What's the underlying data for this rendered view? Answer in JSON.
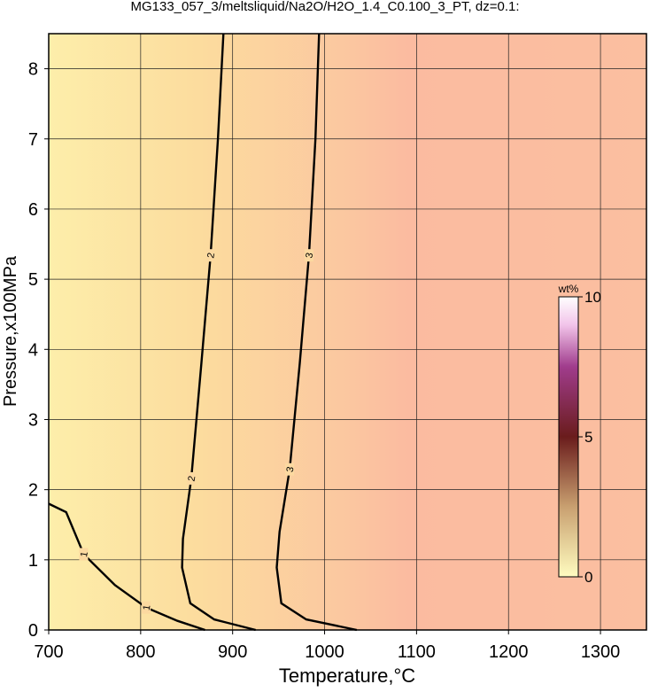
{
  "chart_data": {
    "type": "contour",
    "title": "MG133_057_3/meltsliquid/Na2O/H2O_1.4_C0.100_3_PT, dz=0.1:",
    "x_label": "Temperature,°C",
    "y_label": "Pressure,x100MPa",
    "xlim": [
      700,
      1350
    ],
    "ylim": [
      0,
      8.5
    ],
    "xticks": [
      700,
      800,
      900,
      1000,
      1100,
      1200,
      1300
    ],
    "yticks": [
      0,
      1,
      2,
      3,
      4,
      5,
      6,
      7,
      8
    ],
    "grid": true,
    "contours": [
      {
        "level": 1,
        "x": [
          700,
          719,
          738,
          772,
          806,
          840,
          870
        ],
        "y": [
          1.8,
          1.68,
          1.08,
          0.64,
          0.32,
          0.13,
          0
        ]
      },
      {
        "level": 2,
        "x": [
          890,
          884,
          876,
          866,
          855,
          846,
          845,
          854,
          880,
          925
        ],
        "y": [
          8.5,
          7.0,
          5.34,
          3.8,
          2.16,
          1.3,
          0.89,
          0.38,
          0.15,
          0
        ]
      },
      {
        "level": 3,
        "x": [
          994,
          990,
          983,
          973,
          962,
          951,
          948,
          953,
          980,
          1035
        ],
        "y": [
          8.5,
          7.0,
          5.34,
          3.8,
          2.29,
          1.4,
          0.89,
          0.38,
          0.15,
          0
        ]
      }
    ],
    "colorbar": {
      "label": "wt%",
      "lim": [
        0,
        10
      ],
      "ticks": [
        0,
        5,
        10
      ]
    }
  }
}
